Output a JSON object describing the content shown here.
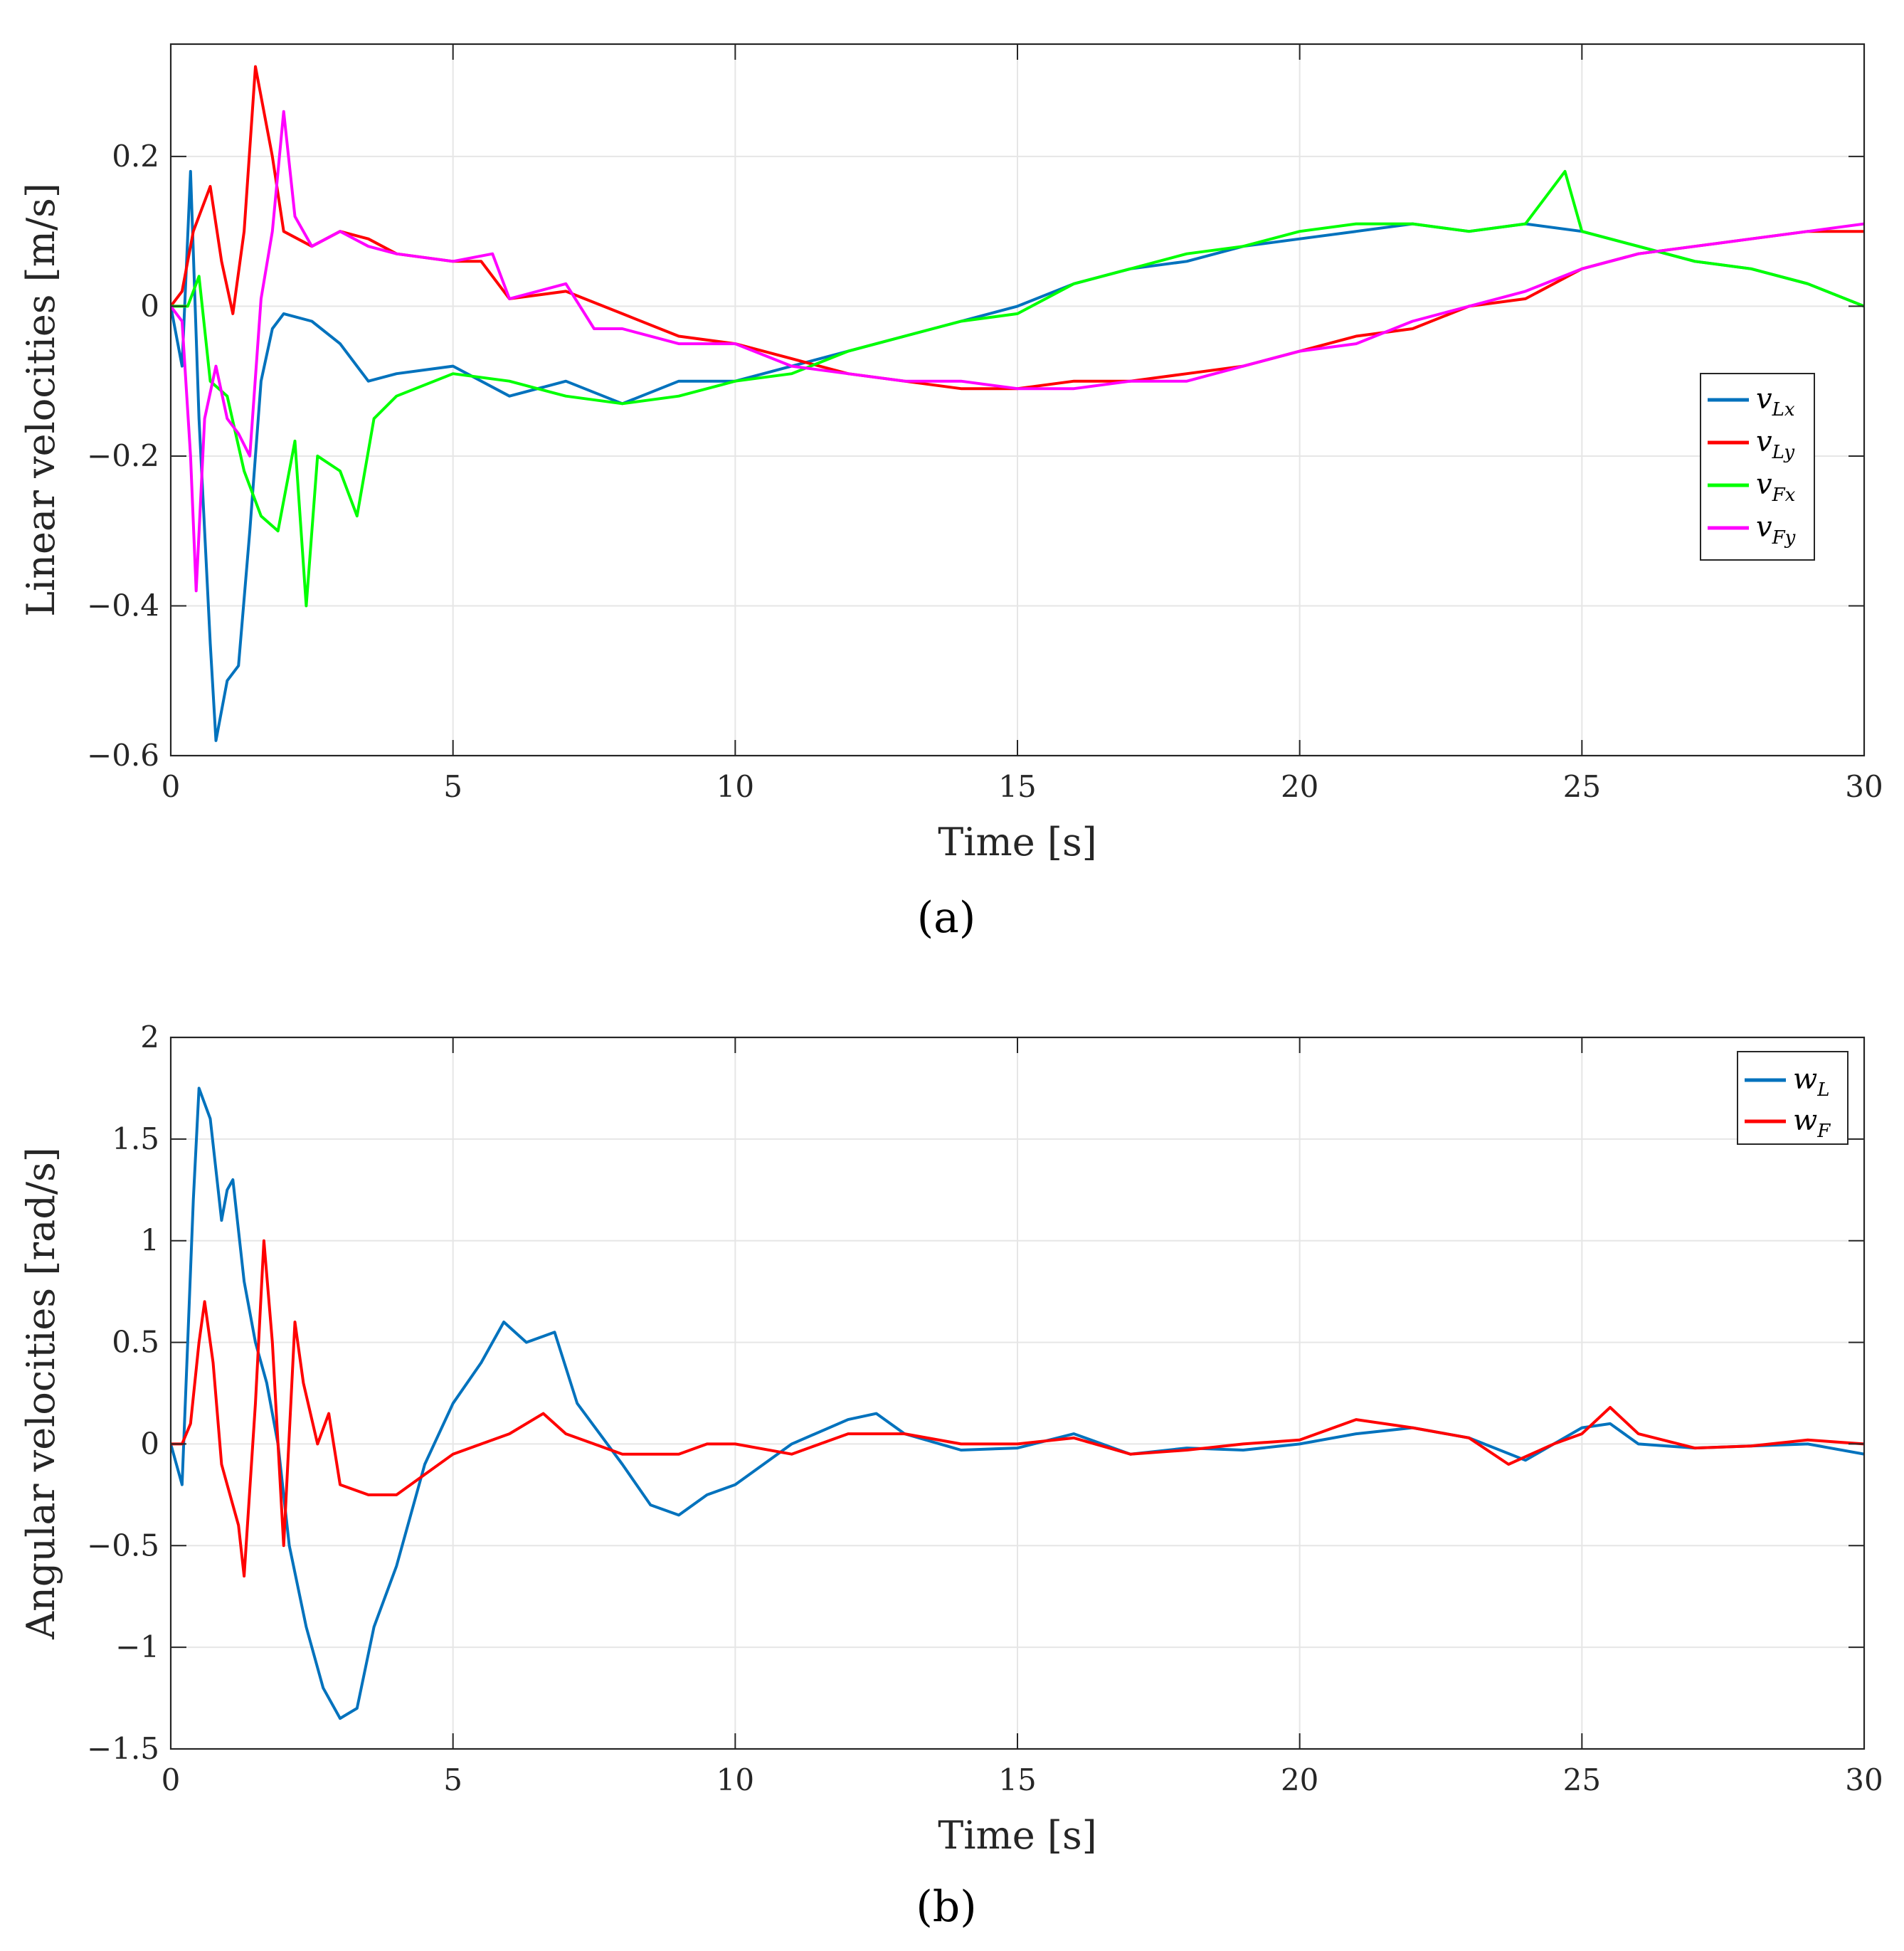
{
  "chart_data": [
    {
      "type": "line",
      "panel_label": "(a)",
      "xlabel": "Time [s]",
      "ylabel": "Linear velocities [m/s]",
      "xlim": [
        0,
        30
      ],
      "ylim": [
        -0.6,
        0.35
      ],
      "xticks": [
        0,
        5,
        10,
        15,
        20,
        25,
        30
      ],
      "xtick_labels": [
        "0",
        "5",
        "10",
        "15",
        "20",
        "25",
        "30"
      ],
      "yticks": [
        -0.6,
        -0.4,
        -0.2,
        0,
        0.2
      ],
      "ytick_labels": [
        "−0.6",
        "−0.4",
        "−0.2",
        "0",
        "0.2"
      ],
      "grid": true,
      "legend_position": "right",
      "series": [
        {
          "name": "v_Lx",
          "label_main": "v",
          "label_sub": "Lx",
          "color": "#0072BD",
          "x": [
            0,
            0.2,
            0.35,
            0.5,
            0.7,
            0.8,
            1.0,
            1.2,
            1.4,
            1.6,
            1.8,
            2.0,
            2.5,
            3.0,
            3.5,
            4.0,
            5.0,
            6.0,
            7.0,
            8.0,
            9.0,
            10.0,
            11.0,
            12.0,
            13.0,
            14.0,
            15.0,
            16.0,
            17.0,
            18.0,
            19.0,
            20.0,
            21.0,
            22.0,
            23.0,
            24.0,
            25.0,
            26.0,
            27.0,
            28.0,
            29.0,
            30.0
          ],
          "y": [
            0,
            -0.08,
            0.18,
            -0.15,
            -0.45,
            -0.58,
            -0.5,
            -0.48,
            -0.3,
            -0.1,
            -0.03,
            -0.01,
            -0.02,
            -0.05,
            -0.1,
            -0.09,
            -0.08,
            -0.12,
            -0.1,
            -0.13,
            -0.1,
            -0.1,
            -0.08,
            -0.06,
            -0.04,
            -0.02,
            0.0,
            0.03,
            0.05,
            0.06,
            0.08,
            0.09,
            0.1,
            0.11,
            0.1,
            0.11,
            0.1,
            0.08,
            0.06,
            0.05,
            0.03,
            0.0
          ]
        },
        {
          "name": "v_Ly",
          "label_main": "v",
          "label_sub": "Ly",
          "color": "#FF0000",
          "x": [
            0,
            0.2,
            0.4,
            0.7,
            0.9,
            1.1,
            1.3,
            1.5,
            1.8,
            2.0,
            2.5,
            3.0,
            3.5,
            4.0,
            5.0,
            5.5,
            6.0,
            7.0,
            8.0,
            9.0,
            10.0,
            11.0,
            12.0,
            13.0,
            14.0,
            15.0,
            16.0,
            17.0,
            18.0,
            19.0,
            20.0,
            21.0,
            22.0,
            23.0,
            24.0,
            25.0,
            26.0,
            27.0,
            28.0,
            29.0,
            30.0
          ],
          "y": [
            0,
            0.02,
            0.1,
            0.16,
            0.06,
            -0.01,
            0.1,
            0.32,
            0.2,
            0.1,
            0.08,
            0.1,
            0.09,
            0.07,
            0.06,
            0.06,
            0.01,
            0.02,
            -0.01,
            -0.04,
            -0.05,
            -0.07,
            -0.09,
            -0.1,
            -0.11,
            -0.11,
            -0.1,
            -0.1,
            -0.09,
            -0.08,
            -0.06,
            -0.04,
            -0.03,
            0.0,
            0.01,
            0.05,
            0.07,
            0.08,
            0.09,
            0.1,
            0.1
          ]
        },
        {
          "name": "v_Fx",
          "label_main": "v",
          "label_sub": "Fx",
          "color": "#00FF00",
          "x": [
            0,
            0.3,
            0.5,
            0.7,
            1.0,
            1.3,
            1.6,
            1.9,
            2.2,
            2.4,
            2.6,
            3.0,
            3.3,
            3.6,
            4.0,
            5.0,
            6.0,
            7.0,
            8.0,
            9.0,
            10.0,
            11.0,
            12.0,
            13.0,
            14.0,
            15.0,
            16.0,
            17.0,
            18.0,
            19.0,
            20.0,
            21.0,
            22.0,
            23.0,
            24.0,
            24.7,
            25.0,
            26.0,
            27.0,
            28.0,
            29.0,
            30.0
          ],
          "y": [
            0,
            0.0,
            0.04,
            -0.1,
            -0.12,
            -0.22,
            -0.28,
            -0.3,
            -0.18,
            -0.4,
            -0.2,
            -0.22,
            -0.28,
            -0.15,
            -0.12,
            -0.09,
            -0.1,
            -0.12,
            -0.13,
            -0.12,
            -0.1,
            -0.09,
            -0.06,
            -0.04,
            -0.02,
            -0.01,
            0.03,
            0.05,
            0.07,
            0.08,
            0.1,
            0.11,
            0.11,
            0.1,
            0.11,
            0.18,
            0.1,
            0.08,
            0.06,
            0.05,
            0.03,
            0.0
          ]
        },
        {
          "name": "v_Fy",
          "label_main": "v",
          "label_sub": "Fy",
          "color": "#FF00FF",
          "x": [
            0,
            0.2,
            0.35,
            0.45,
            0.6,
            0.8,
            1.0,
            1.2,
            1.4,
            1.6,
            1.8,
            2.0,
            2.2,
            2.5,
            3.0,
            3.5,
            4.0,
            5.0,
            5.7,
            6.0,
            7.0,
            7.5,
            8.0,
            9.0,
            10.0,
            11.0,
            12.0,
            13.0,
            14.0,
            15.0,
            16.0,
            17.0,
            18.0,
            19.0,
            20.0,
            21.0,
            22.0,
            23.0,
            24.0,
            25.0,
            26.0,
            27.0,
            28.0,
            29.0,
            30.0
          ],
          "y": [
            0,
            -0.02,
            -0.2,
            -0.38,
            -0.15,
            -0.08,
            -0.15,
            -0.17,
            -0.2,
            0.01,
            0.1,
            0.26,
            0.12,
            0.08,
            0.1,
            0.08,
            0.07,
            0.06,
            0.07,
            0.01,
            0.03,
            -0.03,
            -0.03,
            -0.05,
            -0.05,
            -0.08,
            -0.09,
            -0.1,
            -0.1,
            -0.11,
            -0.11,
            -0.1,
            -0.1,
            -0.08,
            -0.06,
            -0.05,
            -0.02,
            0.0,
            0.02,
            0.05,
            0.07,
            0.08,
            0.09,
            0.1,
            0.11
          ]
        }
      ]
    },
    {
      "type": "line",
      "panel_label": "(b)",
      "xlabel": "Time [s]",
      "ylabel": "Angular velocities [rad/s]",
      "xlim": [
        0,
        30
      ],
      "ylim": [
        -1.5,
        2
      ],
      "xticks": [
        0,
        5,
        10,
        15,
        20,
        25,
        30
      ],
      "xtick_labels": [
        "0",
        "5",
        "10",
        "15",
        "20",
        "25",
        "30"
      ],
      "yticks": [
        -1.5,
        -1,
        -0.5,
        0,
        0.5,
        1,
        1.5,
        2
      ],
      "ytick_labels": [
        "−1.5",
        "−1",
        "−0.5",
        "0",
        "0.5",
        "1",
        "1.5",
        "2"
      ],
      "grid": true,
      "legend_position": "top-right",
      "series": [
        {
          "name": "w_L",
          "label_main": "w",
          "label_sub": "L",
          "color": "#0072BD",
          "x": [
            0,
            0.2,
            0.4,
            0.5,
            0.7,
            0.9,
            1.0,
            1.1,
            1.3,
            1.5,
            1.7,
            1.9,
            2.1,
            2.4,
            2.7,
            3.0,
            3.3,
            3.6,
            4.0,
            4.5,
            5.0,
            5.5,
            5.9,
            6.3,
            6.8,
            7.2,
            8.0,
            8.5,
            9.0,
            9.5,
            10.0,
            11.0,
            12.0,
            12.5,
            13.0,
            14.0,
            15.0,
            16.0,
            17.0,
            18.0,
            19.0,
            20.0,
            21.0,
            22.0,
            23.0,
            24.0,
            25.0,
            25.5,
            26.0,
            27.0,
            28.0,
            29.0,
            30.0
          ],
          "y": [
            0,
            -0.2,
            1.2,
            1.75,
            1.6,
            1.1,
            1.25,
            1.3,
            0.8,
            0.5,
            0.3,
            0.0,
            -0.5,
            -0.9,
            -1.2,
            -1.35,
            -1.3,
            -0.9,
            -0.6,
            -0.1,
            0.2,
            0.4,
            0.6,
            0.5,
            0.55,
            0.2,
            -0.1,
            -0.3,
            -0.35,
            -0.25,
            -0.2,
            0.0,
            0.12,
            0.15,
            0.05,
            -0.03,
            -0.02,
            0.05,
            -0.05,
            -0.02,
            -0.03,
            0.0,
            0.05,
            0.08,
            0.03,
            -0.08,
            0.08,
            0.1,
            0.0,
            -0.02,
            -0.01,
            0.0,
            -0.05
          ]
        },
        {
          "name": "w_F",
          "label_main": "w",
          "label_sub": "F",
          "color": "#FF0000",
          "x": [
            0,
            0.2,
            0.35,
            0.5,
            0.6,
            0.75,
            0.9,
            1.0,
            1.2,
            1.3,
            1.5,
            1.65,
            1.8,
            2.0,
            2.2,
            2.35,
            2.6,
            2.8,
            3.0,
            3.5,
            4.0,
            4.5,
            5.0,
            6.0,
            6.6,
            7.0,
            8.0,
            9.0,
            9.5,
            10.0,
            11.0,
            12.0,
            13.0,
            14.0,
            15.0,
            16.0,
            17.0,
            18.0,
            19.0,
            20.0,
            21.0,
            22.0,
            23.0,
            23.7,
            24.5,
            25.0,
            25.5,
            26.0,
            27.0,
            28.0,
            29.0,
            30.0
          ],
          "y": [
            0,
            0.0,
            0.1,
            0.5,
            0.7,
            0.4,
            -0.1,
            -0.2,
            -0.4,
            -0.65,
            0.2,
            1.0,
            0.5,
            -0.5,
            0.6,
            0.3,
            0.0,
            0.15,
            -0.2,
            -0.25,
            -0.25,
            -0.15,
            -0.05,
            0.05,
            0.15,
            0.05,
            -0.05,
            -0.05,
            0.0,
            0.0,
            -0.05,
            0.05,
            0.05,
            0.0,
            0.0,
            0.03,
            -0.05,
            -0.03,
            0.0,
            0.02,
            0.12,
            0.08,
            0.03,
            -0.1,
            0.0,
            0.05,
            0.18,
            0.05,
            -0.02,
            -0.01,
            0.02,
            0.0
          ]
        }
      ]
    }
  ]
}
